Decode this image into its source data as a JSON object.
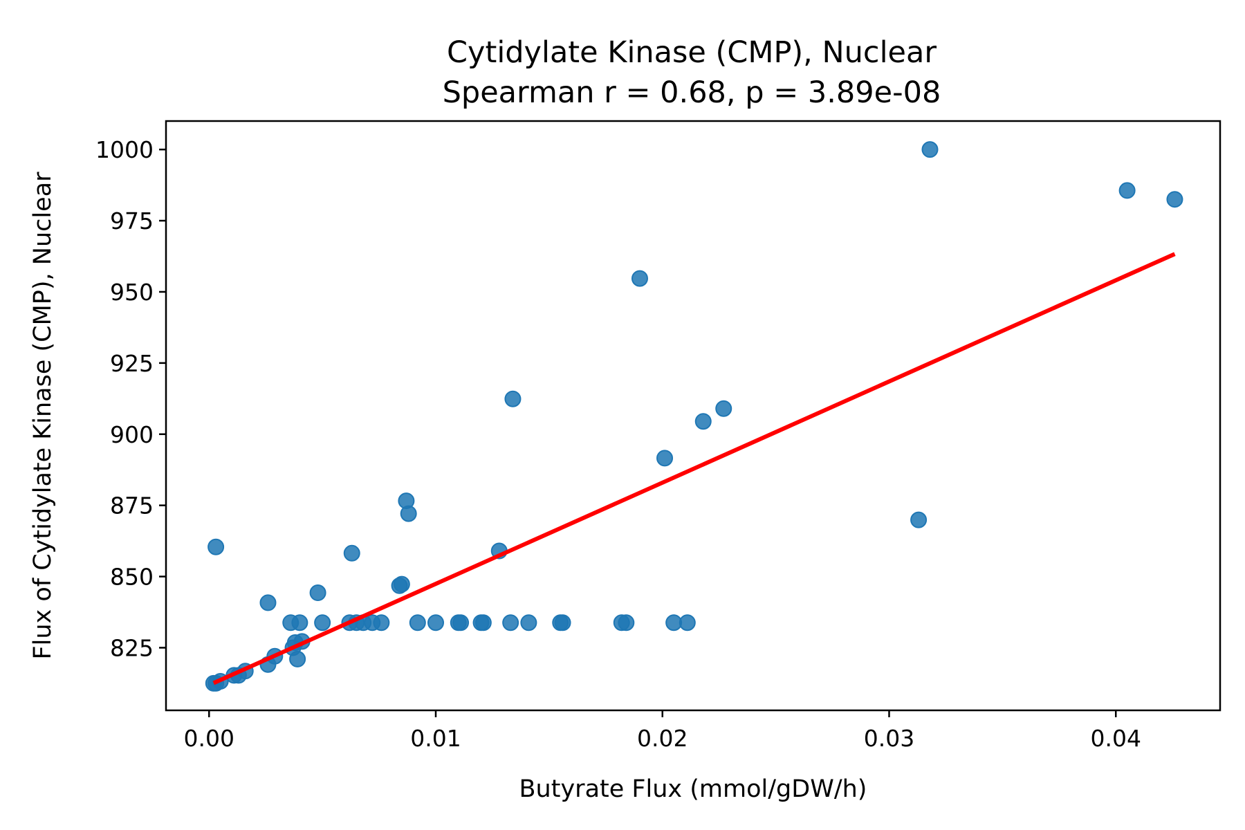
{
  "chart_data": {
    "type": "scatter",
    "title": "Cytidylate Kinase (CMP), Nuclear",
    "subtitle": "Spearman r = 0.68, p = 3.89e-08",
    "xlabel": "Butyrate Flux (mmol/gDW/h)",
    "ylabel": "Flux of Cytidylate Kinase (CMP), Nuclear",
    "xlim": [
      -0.0019,
      0.0446
    ],
    "ylim": [
      803,
      1010
    ],
    "x_ticks": [
      0.0,
      0.01,
      0.02,
      0.03,
      0.04
    ],
    "x_tick_labels": [
      "0.00",
      "0.01",
      "0.02",
      "0.03",
      "0.04"
    ],
    "y_ticks": [
      825,
      850,
      875,
      900,
      925,
      950,
      975,
      1000
    ],
    "y_tick_labels": [
      "825",
      "850",
      "875",
      "900",
      "925",
      "950",
      "975",
      "1000"
    ],
    "grid": false,
    "point_color": "#1f77b4",
    "fit_line_color": "#ff0000",
    "series": [
      {
        "points": [
          [
            0.0002,
            812.5
          ],
          [
            0.0003,
            812.5
          ],
          [
            0.0005,
            813.2
          ],
          [
            0.0011,
            815.3
          ],
          [
            0.0013,
            815.3
          ],
          [
            0.0016,
            816.8
          ],
          [
            0.0003,
            860.4
          ],
          [
            0.0026,
            819.1
          ],
          [
            0.0029,
            822.0
          ],
          [
            0.0026,
            840.8
          ],
          [
            0.0036,
            833.8
          ],
          [
            0.004,
            833.8
          ],
          [
            0.0037,
            825.0
          ],
          [
            0.0038,
            826.8
          ],
          [
            0.0041,
            827.2
          ],
          [
            0.0039,
            821.0
          ],
          [
            0.0048,
            844.3
          ],
          [
            0.005,
            833.8
          ],
          [
            0.0062,
            833.8
          ],
          [
            0.0065,
            833.8
          ],
          [
            0.0068,
            833.8
          ],
          [
            0.0072,
            833.8
          ],
          [
            0.0076,
            833.8
          ],
          [
            0.0063,
            858.2
          ],
          [
            0.0084,
            846.8
          ],
          [
            0.0085,
            847.3
          ],
          [
            0.0087,
            876.6
          ],
          [
            0.0088,
            872.1
          ],
          [
            0.0092,
            833.8
          ],
          [
            0.01,
            833.8
          ],
          [
            0.011,
            833.8
          ],
          [
            0.0111,
            833.8
          ],
          [
            0.012,
            833.8
          ],
          [
            0.0121,
            833.8
          ],
          [
            0.0128,
            859.0
          ],
          [
            0.0133,
            833.8
          ],
          [
            0.0134,
            912.4
          ],
          [
            0.0141,
            833.8
          ],
          [
            0.0155,
            833.8
          ],
          [
            0.0156,
            833.8
          ],
          [
            0.0182,
            833.8
          ],
          [
            0.0184,
            833.8
          ],
          [
            0.019,
            954.7
          ],
          [
            0.0201,
            891.6
          ],
          [
            0.0205,
            833.8
          ],
          [
            0.0211,
            833.8
          ],
          [
            0.0218,
            904.5
          ],
          [
            0.0227,
            909.0
          ],
          [
            0.0313,
            869.9
          ],
          [
            0.0318,
            1000.0
          ],
          [
            0.0405,
            985.6
          ],
          [
            0.0426,
            982.5
          ]
        ]
      }
    ],
    "fit_line": {
      "x": [
        0.0002,
        0.0426
      ],
      "y": [
        812.6,
        963.3
      ]
    }
  }
}
